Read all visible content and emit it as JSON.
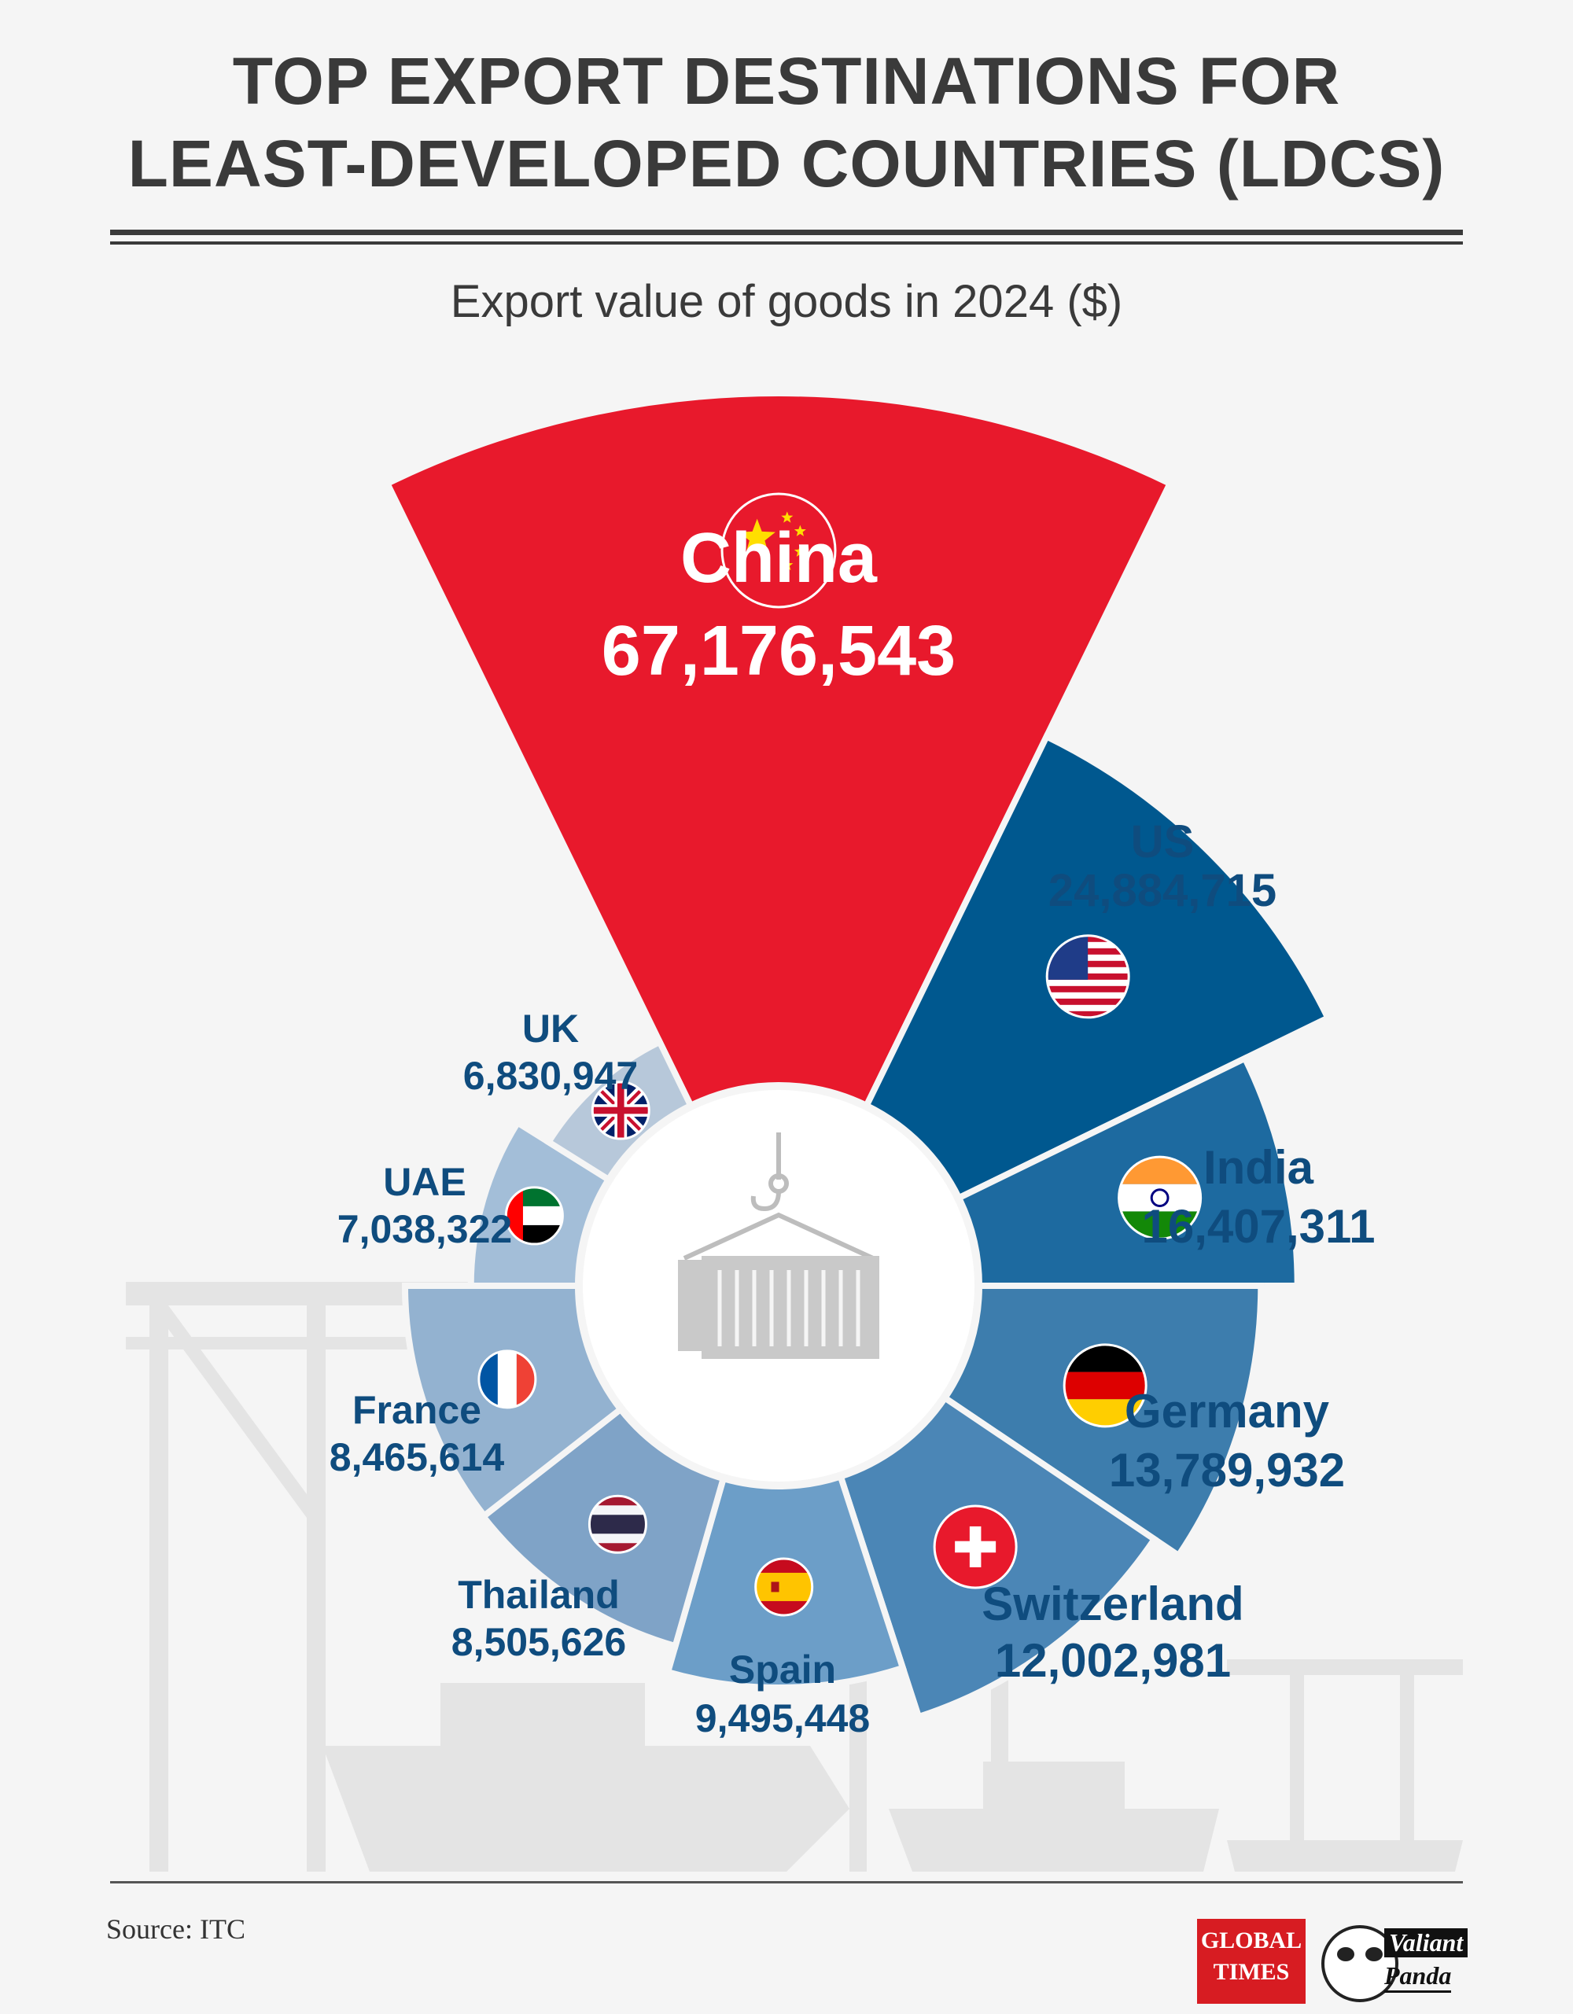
{
  "header": {
    "title_line1": "TOP EXPORT DESTINATIONS FOR",
    "title_line2": "LEAST-DEVELOPED COUNTRIES (LDCS)",
    "subtitle": "Export value of goods in 2024 ($)"
  },
  "footer": {
    "source": "Source: ITC",
    "logo_global_times": [
      "GLOBAL",
      "TIMES"
    ],
    "logo_valiant_panda": [
      "Valiant",
      "Panda"
    ]
  },
  "colors": {
    "china": "#e8192c",
    "us": "#00588f",
    "india": "#1d6aa0",
    "germany": "#3d7dad",
    "switzerland": "#4b86b6",
    "spain": "#6c9ec8",
    "thailand": "#7fa3c7",
    "france": "#93b2d0",
    "uae": "#a3bed8",
    "uk": "#b7c8da",
    "label_dark": "#0f4c7e"
  },
  "chart_data": {
    "type": "pie",
    "variant": "radial bar / nightingale",
    "title": "TOP EXPORT DESTINATIONS FOR LEAST-DEVELOPED COUNTRIES (LDCS)",
    "subtitle": "Export value of goods in 2024 ($)",
    "categories": [
      "China",
      "US",
      "India",
      "Germany",
      "Switzerland",
      "Spain",
      "Thailand",
      "France",
      "UAE",
      "UK"
    ],
    "values": [
      67176543,
      24884715,
      16407311,
      13789932,
      12002981,
      9495448,
      8505626,
      8465614,
      7038322,
      6830947
    ],
    "labels": [
      "67,176,543",
      "24,884,715",
      "16,407,311",
      "13,789,932",
      "12,002,981",
      "9,495,448",
      "8,505,626",
      "8,465,614",
      "7,038,322",
      "6,830,947"
    ],
    "flags": [
      "china-flag-icon",
      "us-flag-icon",
      "india-flag-icon",
      "germany-flag-icon",
      "switzerland-flag-icon",
      "spain-flag-icon",
      "thailand-flag-icon",
      "france-flag-icon",
      "uae-flag-icon",
      "uk-flag-icon"
    ],
    "center_icon": "shipping-container-icon"
  }
}
